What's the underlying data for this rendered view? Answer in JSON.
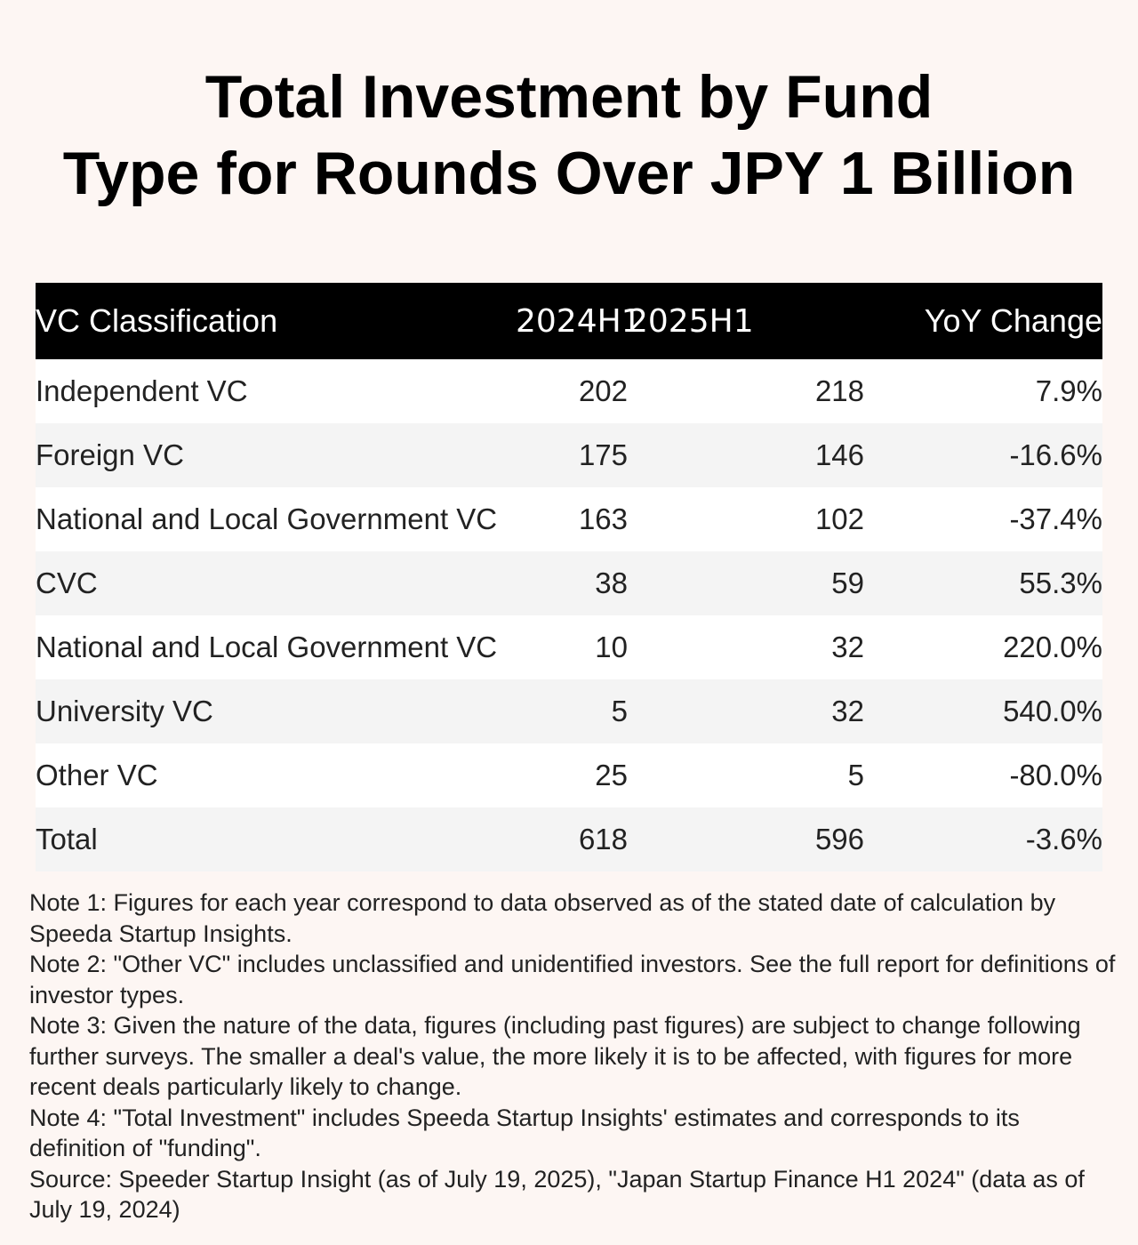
{
  "chart_data": {
    "type": "table",
    "title_lines": [
      "Total Investment by Fund",
      "Type for Rounds Over JPY 1 Billion"
    ],
    "columns": [
      "VC Classification",
      "2024H1",
      "2025H1",
      "YoY Change"
    ],
    "rows": [
      {
        "label": "Independent VC",
        "y2024": "202",
        "y2025": "218",
        "yoy": "7.9%"
      },
      {
        "label": "Foreign VC",
        "y2024": "175",
        "y2025": "146",
        "yoy": "-16.6%"
      },
      {
        "label": "National and Local Government VC",
        "y2024": "163",
        "y2025": "102",
        "yoy": "-37.4%"
      },
      {
        "label": "CVC",
        "y2024": "38",
        "y2025": "59",
        "yoy": "55.3%"
      },
      {
        "label": "National and Local Government VC",
        "y2024": "10",
        "y2025": "32",
        "yoy": "220.0%"
      },
      {
        "label": "University VC",
        "y2024": "5",
        "y2025": "32",
        "yoy": "540.0%"
      },
      {
        "label": "Other VC",
        "y2024": "25",
        "y2025": "5",
        "yoy": "-80.0%"
      },
      {
        "label": "Total",
        "y2024": "618",
        "y2025": "596",
        "yoy": "-3.6%"
      }
    ],
    "notes": [
      "Note 1: Figures for each year correspond to data observed as of the stated date of calculation by Speeda Startup Insights.",
      "Note 2: \"Other VC\" includes unclassified and unidentified investors. See the full report for definitions of investor types.",
      "Note 3: Given the nature of the data, figures (including past figures) are subject to change following further surveys. The smaller a deal's value, the more likely it is to be affected, with figures for more recent deals particularly likely to change.",
      "Note 4: \"Total Investment\" includes Speeda Startup Insights' estimates and corresponds to its definition of \"funding\".",
      "Source: Speeder Startup Insight (as of July 19, 2025), \"Japan Startup Finance H1 2024\" (data as of July 19, 2024)"
    ]
  },
  "colors": {
    "background": "#fdf6f3",
    "header_bg": "#000000",
    "header_text": "#ffffff",
    "row_odd": "#ffffff",
    "row_even": "#f4f4f4",
    "text": "#222222"
  }
}
